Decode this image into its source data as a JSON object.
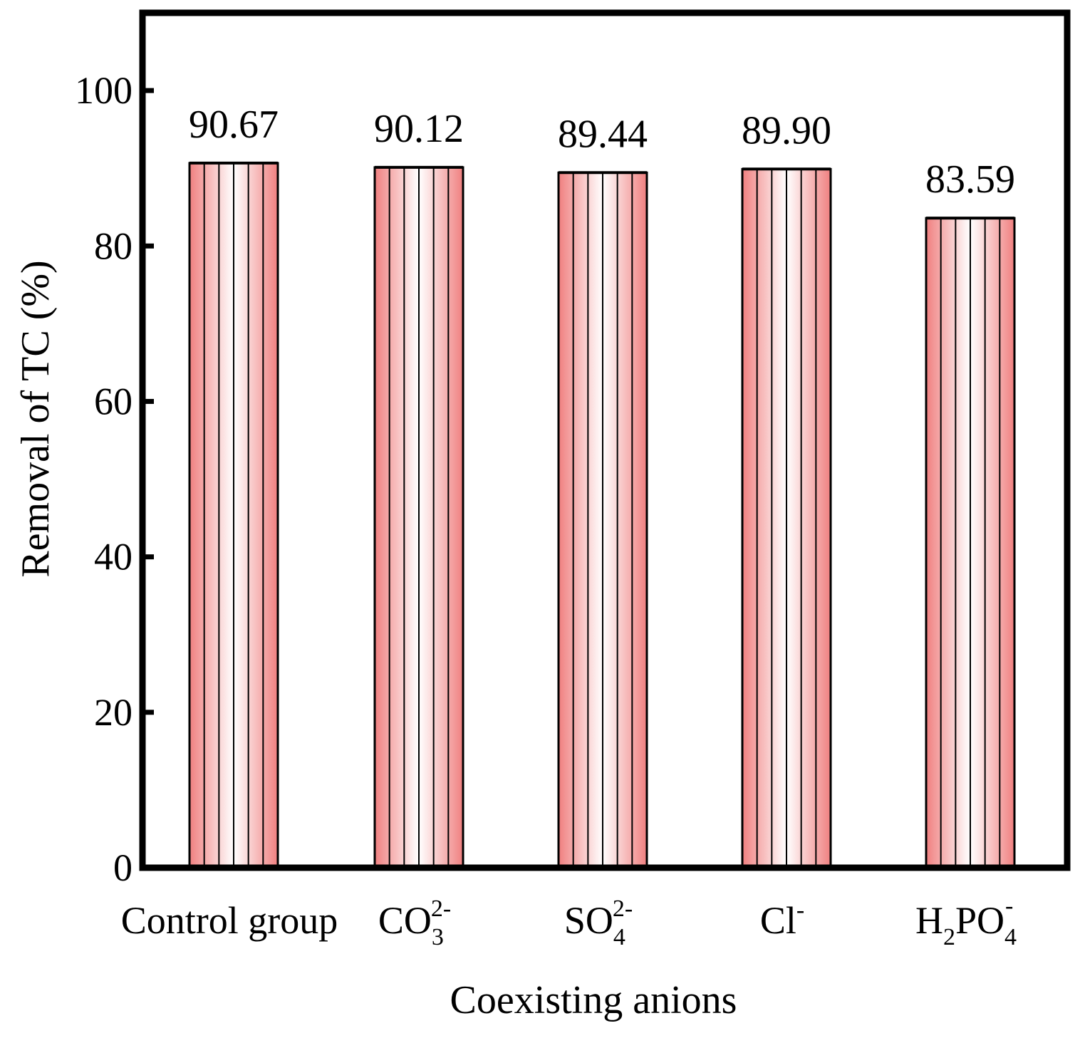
{
  "chart_data": {
    "type": "bar",
    "title": "",
    "xlabel": "Coexisting anions",
    "ylabel": "Removal of TC (%)",
    "ylim": [
      0,
      110
    ],
    "yticks": [
      "0",
      "20",
      "40",
      "60",
      "80",
      "100"
    ],
    "grid": false,
    "categories": [
      {
        "name": "Control group",
        "base": "Control group",
        "sub": "",
        "sup": "",
        "tail": ""
      },
      {
        "name": "CO3 2-",
        "base": "CO",
        "sub": "3",
        "sup": "2-",
        "tail": ""
      },
      {
        "name": "SO4 2-",
        "base": "SO",
        "sub": "4",
        "sup": "2-",
        "tail": ""
      },
      {
        "name": "Cl-",
        "base": "Cl",
        "sub": "",
        "sup": "-",
        "tail": ""
      },
      {
        "name": "H2PO4 -",
        "base": "H",
        "sub": "2",
        "sup": "",
        "tail": "PO",
        "sub2": "4",
        "sup2": "-"
      }
    ],
    "values": [
      90.67,
      90.12,
      89.44,
      89.9,
      83.59
    ],
    "value_labels": [
      "90.67",
      "90.12",
      "89.44",
      "89.90",
      "83.59"
    ],
    "bar_color": "#f08080",
    "bar_light": "#ffffff"
  }
}
